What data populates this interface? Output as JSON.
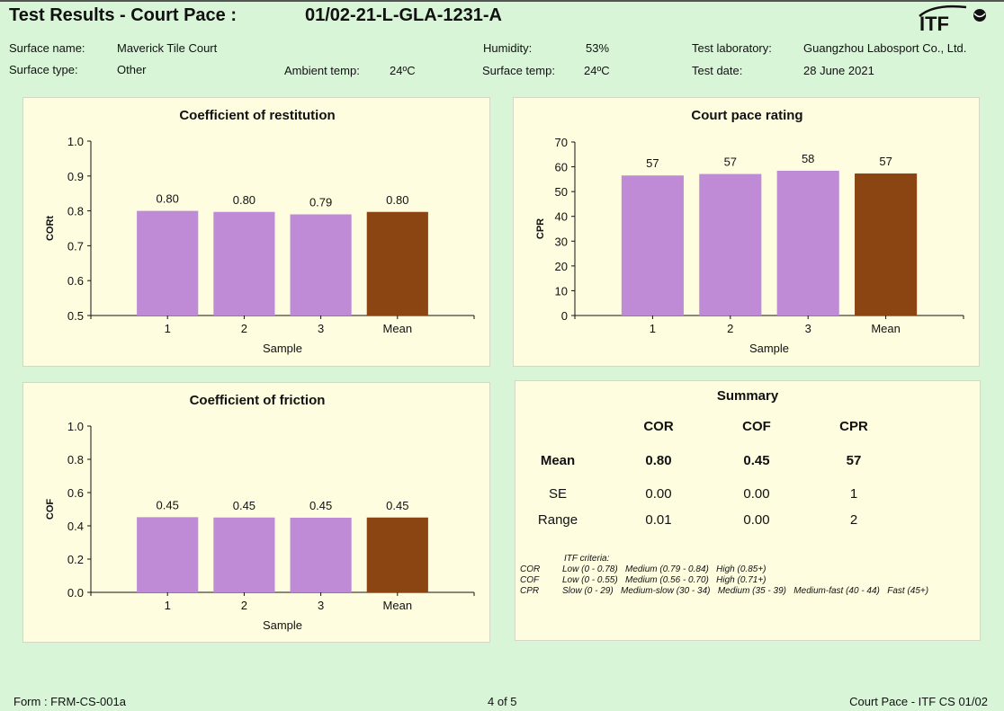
{
  "header": {
    "title": "Test Results - Court Pace  :",
    "reference": "01/02-21-L-GLA-1231-A",
    "logo_text": "ITF"
  },
  "meta": {
    "surface_name_label": "Surface name:",
    "surface_name": "Maverick Tile Court",
    "surface_type_label": "Surface type:",
    "surface_type": "Other",
    "ambient_temp_label": "Ambient temp:",
    "ambient_temp": "24ºC",
    "humidity_label": "Humidity:",
    "humidity": "53%",
    "surface_temp_label": "Surface temp:",
    "surface_temp": "24ºC",
    "test_lab_label": "Test laboratory:",
    "test_lab": "Guangzhou Labosport Co., Ltd.",
    "test_date_label": "Test date:",
    "test_date": "28 June 2021"
  },
  "colors": {
    "sample_bar": "#bf8bd6",
    "mean_bar": "#8b4513",
    "panel_bg": "#fefde0",
    "page_bg": "#d9f5d8"
  },
  "chart_data": [
    {
      "id": "cor",
      "type": "bar",
      "title": "Coefficient of restitution",
      "xlabel": "Sample",
      "ylabel": "CORt",
      "categories": [
        "1",
        "2",
        "3",
        "Mean"
      ],
      "values": [
        0.8,
        0.797,
        0.79,
        0.797
      ],
      "labels": [
        "0.80",
        "0.80",
        "0.79",
        "0.80"
      ],
      "ylim": [
        0.5,
        1.0
      ],
      "yticks": [
        0.5,
        0.6,
        0.7,
        0.8,
        0.9,
        1.0
      ],
      "ytick_labels": [
        "0.5",
        "0.6",
        "0.7",
        "0.8",
        "0.9",
        "1.0"
      ],
      "grid": false,
      "legend": "none"
    },
    {
      "id": "cpr",
      "type": "bar",
      "title": "Court pace rating",
      "xlabel": "Sample",
      "ylabel": "CPR",
      "categories": [
        "1",
        "2",
        "3",
        "Mean"
      ],
      "values": [
        56.5,
        57.1,
        58.4,
        57.3
      ],
      "labels": [
        "57",
        "57",
        "58",
        "57"
      ],
      "ylim": [
        0,
        70
      ],
      "yticks": [
        0,
        10,
        20,
        30,
        40,
        50,
        60,
        70
      ],
      "ytick_labels": [
        "0",
        "10",
        "20",
        "30",
        "40",
        "50",
        "60",
        "70"
      ],
      "grid": false,
      "legend": "none"
    },
    {
      "id": "cof",
      "type": "bar",
      "title": "Coefficient of friction",
      "xlabel": "Sample",
      "ylabel": "COF",
      "categories": [
        "1",
        "2",
        "3",
        "Mean"
      ],
      "values": [
        0.452,
        0.45,
        0.449,
        0.45
      ],
      "labels": [
        "0.45",
        "0.45",
        "0.45",
        "0.45"
      ],
      "ylim": [
        0.0,
        1.0
      ],
      "yticks": [
        0.0,
        0.2,
        0.4,
        0.6,
        0.8,
        1.0
      ],
      "ytick_labels": [
        "0.0",
        "0.2",
        "0.4",
        "0.6",
        "0.8",
        "1.0"
      ],
      "grid": false,
      "legend": "none"
    }
  ],
  "summary": {
    "title": "Summary",
    "columns": [
      "COR",
      "COF",
      "CPR"
    ],
    "rows": [
      {
        "label": "Mean",
        "values": [
          "0.80",
          "0.45",
          "57"
        ]
      },
      {
        "label": "SE",
        "values": [
          "0.00",
          "0.00",
          "1"
        ]
      },
      {
        "label": "Range",
        "values": [
          "0.01",
          "0.00",
          "2"
        ]
      }
    ],
    "criteria_title": "ITF criteria:",
    "criteria": [
      {
        "metric": "COR",
        "text": "Low (0 - 0.78)   Medium (0.79 - 0.84)   High (0.85+)"
      },
      {
        "metric": "COF",
        "text": "Low (0 - 0.55)   Medium (0.56 - 0.70)   High (0.71+)"
      },
      {
        "metric": "CPR",
        "text": "Slow (0 - 29)   Medium-slow (30 - 34)   Medium (35 - 39)   Medium-fast (40 - 44)   Fast (45+)"
      }
    ]
  },
  "footer": {
    "form": "Form : FRM-CS-001a",
    "page": "4 of 5",
    "doc": "Court Pace - ITF CS 01/02"
  }
}
